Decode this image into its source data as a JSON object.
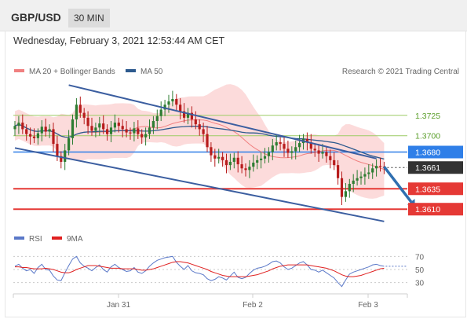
{
  "header": {
    "pair": "GBP/USD",
    "timeframe": "30 MIN"
  },
  "timestamp": "Wednesday, February 3, 2021 12:53:44 AM CET",
  "legend": {
    "ma20": {
      "label": "MA 20 + Bollinger Bands",
      "color": "#f08080"
    },
    "ma50": {
      "label": "MA 50",
      "color": "#2d5a8e"
    }
  },
  "credit": "Research © 2021 Trading Central",
  "rsi_legend": {
    "rsi": {
      "label": "RSI",
      "color": "#5a78c8"
    },
    "ma9": {
      "label": "9MA",
      "color": "#e02020"
    }
  },
  "colors": {
    "up": "#2e7d32",
    "down": "#b71c1c",
    "bands": "#fcd5d5",
    "resistance": "#9ccc65",
    "pivot": "#2f7fe8",
    "support": "#e53935",
    "last": "#333333",
    "channel": "#3b5ea0",
    "arrow": "#2f6fb0"
  },
  "chart_data": [
    {
      "type": "candlestick",
      "title": "GBP/USD 30 MIN",
      "ylim": [
        1.359,
        1.377
      ],
      "x_ticks": [
        "Jan 31",
        "Feb 2",
        "Feb 3"
      ],
      "levels": [
        {
          "label": "1.3725",
          "value": 1.3725,
          "kind": "resistance"
        },
        {
          "label": "1.3700",
          "value": 1.37,
          "kind": "resistance"
        },
        {
          "label": "1.3680",
          "value": 1.368,
          "kind": "pivot"
        },
        {
          "label": "1.3661",
          "value": 1.3661,
          "kind": "last"
        },
        {
          "label": "1.3635",
          "value": 1.3635,
          "kind": "support"
        },
        {
          "label": "1.3610",
          "value": 1.361,
          "kind": "support"
        }
      ],
      "channel": {
        "upper": [
          [
            14,
            1.3762
          ],
          [
            94,
            1.3672
          ]
        ],
        "lower": [
          [
            0,
            1.3685
          ],
          [
            96,
            1.3595
          ]
        ]
      },
      "forecast_arrow": {
        "from": [
          96,
          1.3662
        ],
        "to": [
          104,
          1.3613
        ]
      },
      "closes": [
        1.3712,
        1.3716,
        1.3708,
        1.3702,
        1.3699,
        1.3697,
        1.3703,
        1.3711,
        1.3705,
        1.3708,
        1.369,
        1.3675,
        1.3668,
        1.3682,
        1.3697,
        1.372,
        1.3738,
        1.3728,
        1.3722,
        1.3712,
        1.3706,
        1.371,
        1.3715,
        1.3708,
        1.3702,
        1.371,
        1.3716,
        1.3712,
        1.3708,
        1.3704,
        1.3703,
        1.3709,
        1.3702,
        1.3698,
        1.3702,
        1.371,
        1.3718,
        1.3724,
        1.3732,
        1.3738,
        1.3742,
        1.3745,
        1.3738,
        1.373,
        1.3722,
        1.3728,
        1.372,
        1.3714,
        1.3708,
        1.3702,
        1.3686,
        1.3676,
        1.3672,
        1.3674,
        1.367,
        1.3664,
        1.3668,
        1.3673,
        1.3665,
        1.366,
        1.3658,
        1.3662,
        1.3667,
        1.367,
        1.3672,
        1.3675,
        1.368,
        1.3688,
        1.3692,
        1.369,
        1.3684,
        1.3679,
        1.3681,
        1.3686,
        1.3691,
        1.3696,
        1.3692,
        1.3684,
        1.3682,
        1.3678,
        1.368,
        1.3675,
        1.367,
        1.3664,
        1.3648,
        1.3625,
        1.3632,
        1.3641,
        1.3645,
        1.3648,
        1.365,
        1.3653,
        1.3655,
        1.366,
        1.3663,
        1.3662,
        1.3661
      ]
    },
    {
      "type": "line",
      "title": "RSI",
      "ylim": [
        20,
        80
      ],
      "y_ticks": [
        70,
        50,
        30
      ],
      "series": [
        {
          "name": "RSI",
          "values": [
            55,
            58,
            52,
            48,
            50,
            44,
            53,
            58,
            50,
            49,
            40,
            34,
            33,
            45,
            56,
            66,
            70,
            60,
            55,
            52,
            48,
            53,
            57,
            50,
            46,
            54,
            58,
            53,
            50,
            47,
            48,
            53,
            46,
            44,
            48,
            55,
            60,
            64,
            66,
            68,
            69,
            70,
            61,
            55,
            50,
            56,
            48,
            45,
            44,
            42,
            36,
            33,
            35,
            39,
            37,
            34,
            40,
            46,
            38,
            36,
            38,
            44,
            49,
            52,
            53,
            55,
            58,
            62,
            63,
            60,
            54,
            50,
            52,
            56,
            60,
            62,
            57,
            50,
            49,
            46,
            49,
            45,
            41,
            37,
            30,
            24,
            34,
            43,
            46,
            48,
            50,
            52,
            54,
            57,
            58,
            56,
            55
          ]
        },
        {
          "name": "9MA",
          "values": [
            54,
            54,
            53,
            53,
            52,
            51,
            51,
            51,
            52,
            51,
            50,
            48,
            46,
            45,
            45,
            47,
            50,
            52,
            54,
            56,
            56,
            56,
            55,
            54,
            53,
            52,
            52,
            52,
            51,
            51,
            51,
            51,
            50,
            49,
            49,
            50,
            51,
            53,
            55,
            57,
            59,
            61,
            62,
            62,
            61,
            60,
            58,
            56,
            54,
            52,
            50,
            47,
            45,
            43,
            41,
            40,
            39,
            39,
            39,
            39,
            39,
            40,
            41,
            42,
            44,
            46,
            48,
            51,
            53,
            55,
            56,
            57,
            57,
            57,
            57,
            57,
            57,
            56,
            55,
            54,
            53,
            52,
            50,
            48,
            45,
            42,
            40,
            39,
            39,
            40,
            41,
            43,
            45,
            47,
            49,
            51,
            52
          ]
        }
      ]
    }
  ]
}
